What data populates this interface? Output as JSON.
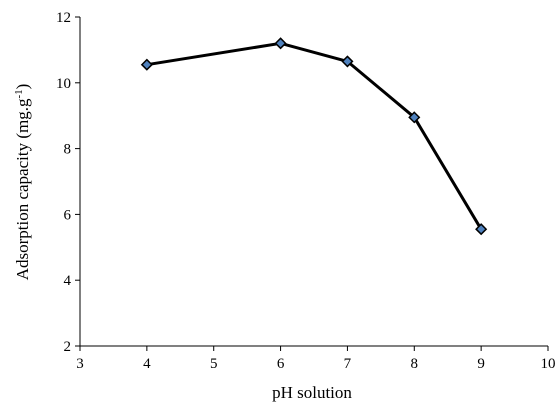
{
  "chart_data": {
    "type": "line",
    "title": "",
    "xlabel": "pH solution",
    "ylabel_main": "Adsorption capacity (mg.g",
    "ylabel_sup": "-1",
    "ylabel_close": ")",
    "xlim": [
      3,
      10
    ],
    "ylim": [
      2,
      12
    ],
    "xticks": [
      3,
      4,
      5,
      6,
      7,
      8,
      9,
      10
    ],
    "yticks": [
      2,
      4,
      6,
      8,
      10,
      12
    ],
    "grid": false,
    "legend": "none",
    "series": [
      {
        "x": [
          4,
          6,
          7,
          8,
          9
        ],
        "y": [
          10.55,
          11.2,
          10.65,
          8.95,
          5.55
        ],
        "line_color": "#000000",
        "marker": "diamond",
        "marker_color": "#4f81bd"
      }
    ]
  }
}
